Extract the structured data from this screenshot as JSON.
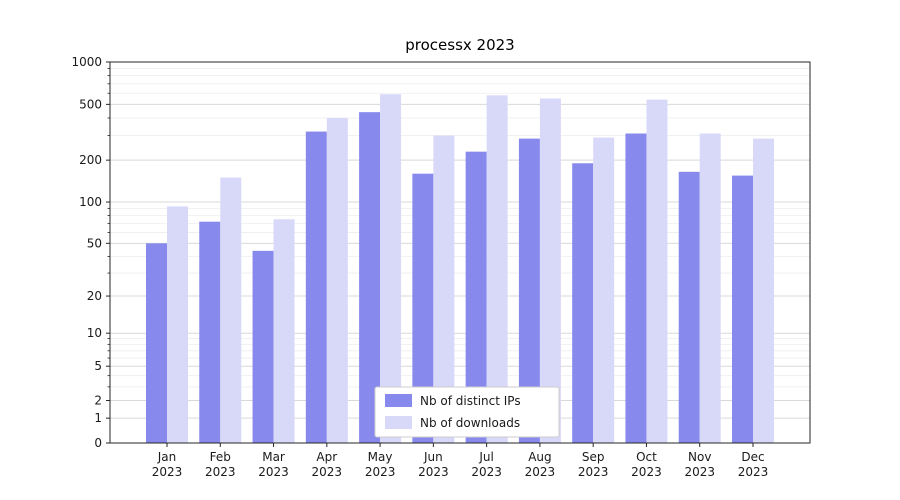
{
  "chart_data": {
    "type": "bar",
    "title": "processx 2023",
    "categories": [
      "Jan",
      "Feb",
      "Mar",
      "Apr",
      "May",
      "Jun",
      "Jul",
      "Aug",
      "Sep",
      "Oct",
      "Nov",
      "Dec"
    ],
    "category_year": "2023",
    "series": [
      {
        "name": "Nb of distinct IPs",
        "color": "#8789ed",
        "values": [
          50,
          72,
          44,
          320,
          440,
          160,
          230,
          285,
          190,
          310,
          165,
          155
        ]
      },
      {
        "name": "Nb of downloads",
        "color": "#d8d9f8",
        "values": [
          93,
          150,
          75,
          400,
          590,
          300,
          580,
          550,
          290,
          540,
          310,
          285
        ]
      }
    ],
    "yscale": "symlog",
    "ylim": [
      0,
      1000
    ],
    "yticks": [
      0,
      1,
      2,
      5,
      10,
      20,
      50,
      100,
      200,
      500,
      1000
    ],
    "grid": true,
    "legend_position": "lower center"
  },
  "colors": {
    "background": "#ffffff",
    "grid_major": "#d9d9d9",
    "grid_minor": "#ededed",
    "axis": "#262626",
    "text": "#1a1a1a",
    "legend_border": "#cccccc",
    "legend_background": "#ffffff"
  }
}
